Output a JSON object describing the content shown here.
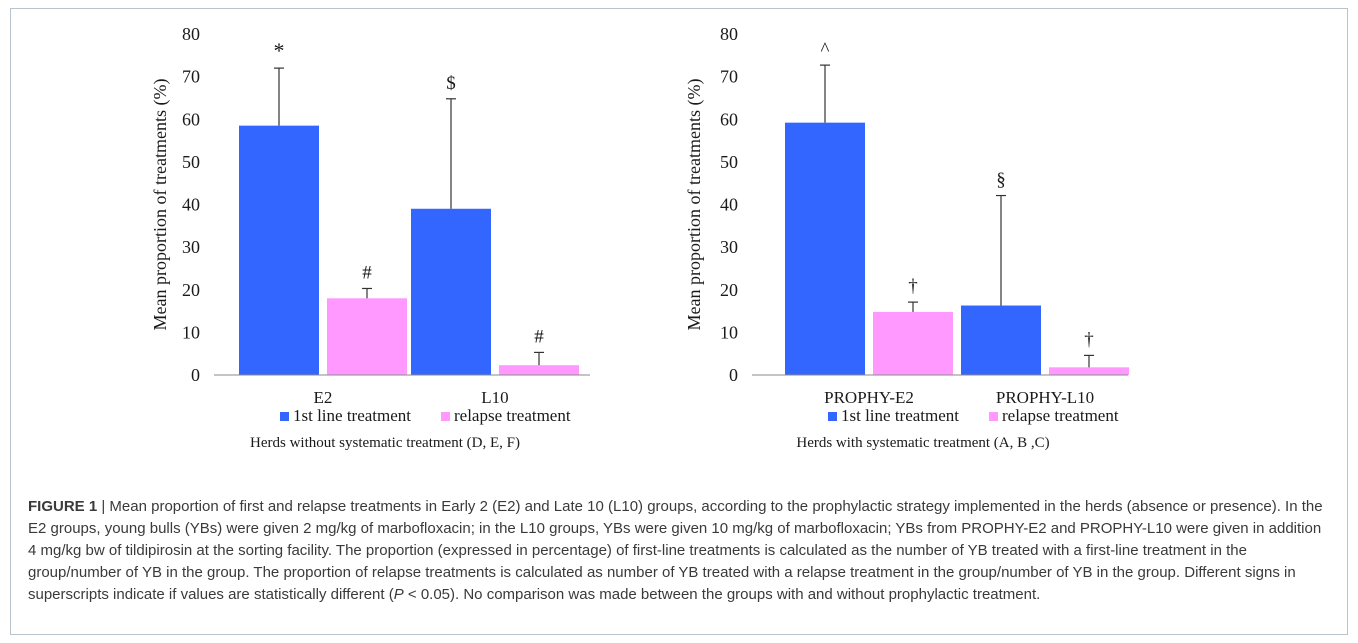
{
  "chart_data": [
    {
      "type": "bar",
      "title": "Herds without systematic treatment (D, E, F)",
      "xlabel": "",
      "ylabel": "Mean proportion of treatments (%)",
      "ylim": [
        0,
        80
      ],
      "yticks": [
        0,
        10,
        20,
        30,
        40,
        50,
        60,
        70,
        80
      ],
      "categories": [
        "E2",
        "L10"
      ],
      "series": [
        {
          "name": "1st line treatment",
          "color": "#3366ff",
          "values": [
            58.5,
            39
          ],
          "error": [
            13.5,
            25.8
          ],
          "marks": [
            "*",
            "$"
          ]
        },
        {
          "name": "relapse treatment",
          "color": "#ff99ff",
          "values": [
            18,
            2.3
          ],
          "error": [
            2.3,
            3
          ],
          "marks": [
            "#",
            "#"
          ]
        }
      ],
      "legend_position": "bottom",
      "grid": false
    },
    {
      "type": "bar",
      "title": "Herds with systematic treatment (A, B ,C)",
      "xlabel": "",
      "ylabel": "Mean proportion of treatments (%)",
      "ylim": [
        0,
        80
      ],
      "yticks": [
        0,
        10,
        20,
        30,
        40,
        50,
        60,
        70,
        80
      ],
      "categories": [
        "PROPHY-E2",
        "PROPHY-L10"
      ],
      "series": [
        {
          "name": "1st line treatment",
          "color": "#3366ff",
          "values": [
            59.2,
            16.3
          ],
          "error": [
            13.5,
            25.8
          ],
          "marks": [
            "^",
            "§"
          ]
        },
        {
          "name": "relapse treatment",
          "color": "#ff99ff",
          "values": [
            14.8,
            1.8
          ],
          "error": [
            2.3,
            2.8
          ],
          "marks": [
            "†",
            "†"
          ]
        }
      ],
      "legend_position": "bottom",
      "grid": false
    }
  ],
  "caption": {
    "label": "FIGURE 1",
    "separator": " | ",
    "text_part1": "Mean proportion of first and relapse treatments in Early 2 (E2) and Late 10 (L10) groups, according to the prophylactic strategy implemented in the herds (absence or presence). In the E2 groups, young bulls (YBs) were given 2 mg/kg of marbofloxacin; in the L10 groups, YBs were given 10 mg/kg of marbofloxacin; YBs from PROPHY-E2 and PROPHY-L10 were given in addition 4 mg/kg bw of tildipirosin at the sorting facility. The proportion (expressed in percentage) of first-line treatments is calculated as the number of YB treated with a first-line treatment in the group/number of YB in the group. The proportion of relapse treatments is calculated as number of YB treated with a relapse treatment in the group/number of YB in the group. Different signs in superscripts indicate if values are statistically different (",
    "p_symbol": "P",
    "text_part2": " < 0.05). No comparison was made between the groups with and without prophylactic treatment."
  }
}
